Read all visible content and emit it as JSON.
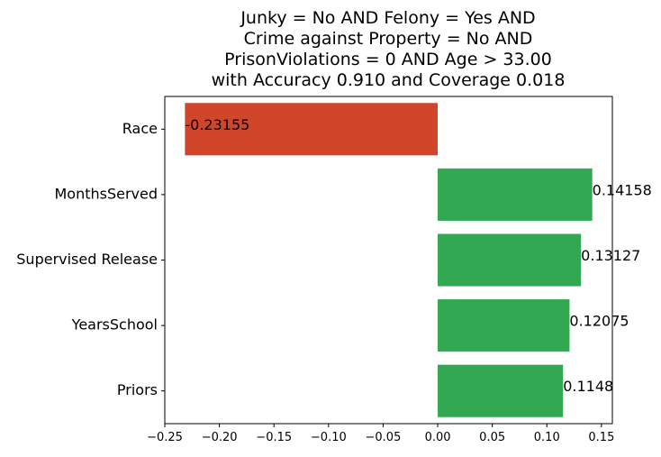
{
  "chart_data": {
    "type": "bar",
    "orientation": "horizontal",
    "title_lines": [
      "Junky = No AND Felony = Yes AND",
      "Crime against Property = No AND",
      "PrisonViolations = 0 AND Age > 33.00",
      "with Accuracy 0.910 and Coverage 0.018"
    ],
    "categories": [
      "Race",
      "MonthsServed",
      "Supervised Release",
      "YearsSchool",
      "Priors"
    ],
    "values": [
      -0.23155,
      0.14158,
      0.13127,
      0.12075,
      0.1148
    ],
    "value_labels": [
      "-0.23155",
      "0.14158",
      "0.13127",
      "0.12075",
      "0.1148"
    ],
    "xlim": [
      -0.25,
      0.16
    ],
    "xticks": [
      -0.25,
      -0.2,
      -0.15,
      -0.1,
      -0.05,
      0.0,
      0.05,
      0.1,
      0.15
    ],
    "xtick_labels": [
      "−0.25",
      "−0.20",
      "−0.15",
      "−0.10",
      "−0.05",
      "0.00",
      "0.05",
      "0.10",
      "0.15"
    ],
    "colors": {
      "negative": "#d1462b",
      "positive": "#33a853"
    },
    "grid": false,
    "xlabel": "",
    "ylabel": ""
  }
}
